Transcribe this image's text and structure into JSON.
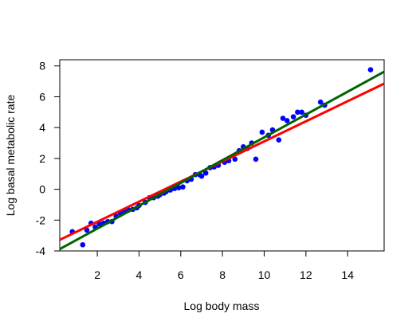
{
  "chart_data": {
    "type": "scatter",
    "title": "",
    "xlabel": "Log body mass",
    "ylabel": "Log basal metabolic rate",
    "xlim": [
      0.2,
      15.75
    ],
    "ylim": [
      -4.0,
      8.4
    ],
    "xticks": [
      2,
      4,
      6,
      8,
      10,
      12,
      14
    ],
    "yticks": [
      -4,
      -2,
      0,
      2,
      4,
      6,
      8
    ],
    "grid": false,
    "legend": "none",
    "colors": {
      "points": "#0000ff",
      "fit_red": "#ff0000",
      "fit_green": "#006400"
    },
    "points": [
      [
        0.8,
        -2.75
      ],
      [
        1.3,
        -3.6
      ],
      [
        1.5,
        -2.65
      ],
      [
        1.7,
        -2.2
      ],
      [
        1.9,
        -2.45
      ],
      [
        2.1,
        -2.25
      ],
      [
        2.3,
        -2.2
      ],
      [
        2.5,
        -2.1
      ],
      [
        2.7,
        -2.1
      ],
      [
        2.9,
        -1.75
      ],
      [
        3.1,
        -1.55
      ],
      [
        3.3,
        -1.45
      ],
      [
        3.5,
        -1.35
      ],
      [
        3.7,
        -1.3
      ],
      [
        3.9,
        -1.2
      ],
      [
        4.0,
        -1.05
      ],
      [
        4.3,
        -0.85
      ],
      [
        4.5,
        -0.55
      ],
      [
        4.7,
        -0.55
      ],
      [
        4.9,
        -0.45
      ],
      [
        5.0,
        -0.35
      ],
      [
        5.2,
        -0.25
      ],
      [
        5.3,
        -0.15
      ],
      [
        5.5,
        -0.05
      ],
      [
        5.7,
        0.05
      ],
      [
        5.9,
        0.1
      ],
      [
        6.1,
        0.15
      ],
      [
        6.3,
        0.55
      ],
      [
        6.5,
        0.65
      ],
      [
        6.7,
        0.95
      ],
      [
        6.9,
        0.95
      ],
      [
        7.0,
        0.85
      ],
      [
        7.2,
        1.05
      ],
      [
        7.4,
        1.4
      ],
      [
        7.6,
        1.45
      ],
      [
        7.8,
        1.55
      ],
      [
        8.1,
        1.75
      ],
      [
        8.3,
        1.85
      ],
      [
        8.6,
        1.95
      ],
      [
        8.8,
        2.5
      ],
      [
        9.0,
        2.75
      ],
      [
        9.2,
        2.65
      ],
      [
        9.4,
        3.0
      ],
      [
        9.6,
        1.95
      ],
      [
        9.9,
        3.7
      ],
      [
        10.2,
        3.5
      ],
      [
        10.4,
        3.85
      ],
      [
        10.7,
        3.2
      ],
      [
        10.9,
        4.6
      ],
      [
        11.1,
        4.45
      ],
      [
        11.4,
        4.7
      ],
      [
        11.6,
        5.0
      ],
      [
        11.8,
        5.0
      ],
      [
        12.0,
        4.8
      ],
      [
        12.7,
        5.65
      ],
      [
        12.9,
        5.45
      ],
      [
        15.1,
        7.75
      ]
    ],
    "lines": [
      {
        "color": "red",
        "x": [
          0.2,
          15.75
        ],
        "y": [
          -3.28,
          6.85
        ]
      },
      {
        "color": "green",
        "x": [
          0.2,
          15.75
        ],
        "y": [
          -3.88,
          7.62
        ]
      }
    ]
  }
}
